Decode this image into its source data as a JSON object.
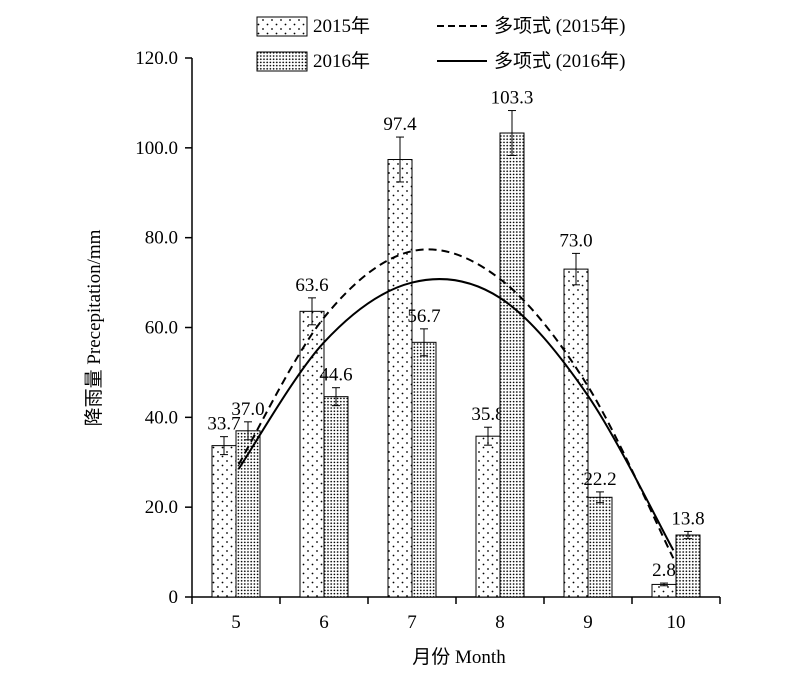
{
  "chart_data": {
    "type": "bar",
    "xlabel": "月份 Month",
    "ylabel": "降雨量 Precepitation/mm",
    "ylim": [
      0,
      120
    ],
    "yticks": [
      "0",
      "20.0",
      "40.0",
      "60.0",
      "80.0",
      "100.0",
      "120.0"
    ],
    "categories": [
      "5",
      "6",
      "7",
      "8",
      "9",
      "10"
    ],
    "legend_position": "top",
    "series": [
      {
        "name": "2015年",
        "pattern": "sparse-dots",
        "values": [
          33.7,
          63.6,
          97.4,
          35.8,
          73.0,
          2.8
        ],
        "labels": [
          "33.7",
          "63.6",
          "97.4",
          "35.8",
          "73.0",
          "2.8"
        ],
        "errors": [
          2.0,
          3.0,
          5.0,
          2.0,
          3.5,
          0.3
        ]
      },
      {
        "name": "2016年",
        "pattern": "dense-dots",
        "values": [
          37.0,
          44.6,
          56.7,
          103.3,
          22.2,
          13.8
        ],
        "labels": [
          "37.0",
          "44.6",
          "56.7",
          "103.3",
          "22.2",
          "13.8"
        ],
        "errors": [
          2.0,
          2.0,
          3.0,
          5.0,
          1.2,
          0.8
        ]
      }
    ],
    "trendlines": [
      {
        "name": "多项式 (2015年)",
        "style": "dashed",
        "points": [
          [
            5.03,
            29.5
          ],
          [
            6,
            62.2
          ],
          [
            7,
            77.0
          ],
          [
            8,
            70.8
          ],
          [
            9,
            46.9
          ],
          [
            9.97,
            8.6
          ]
        ]
      },
      {
        "name": "多项式 (2016年)",
        "style": "solid",
        "points": [
          [
            5.03,
            28.5
          ],
          [
            6,
            56.7
          ],
          [
            7,
            70.0
          ],
          [
            8,
            66.6
          ],
          [
            9,
            44.8
          ],
          [
            9.97,
            10.4
          ]
        ]
      }
    ]
  }
}
